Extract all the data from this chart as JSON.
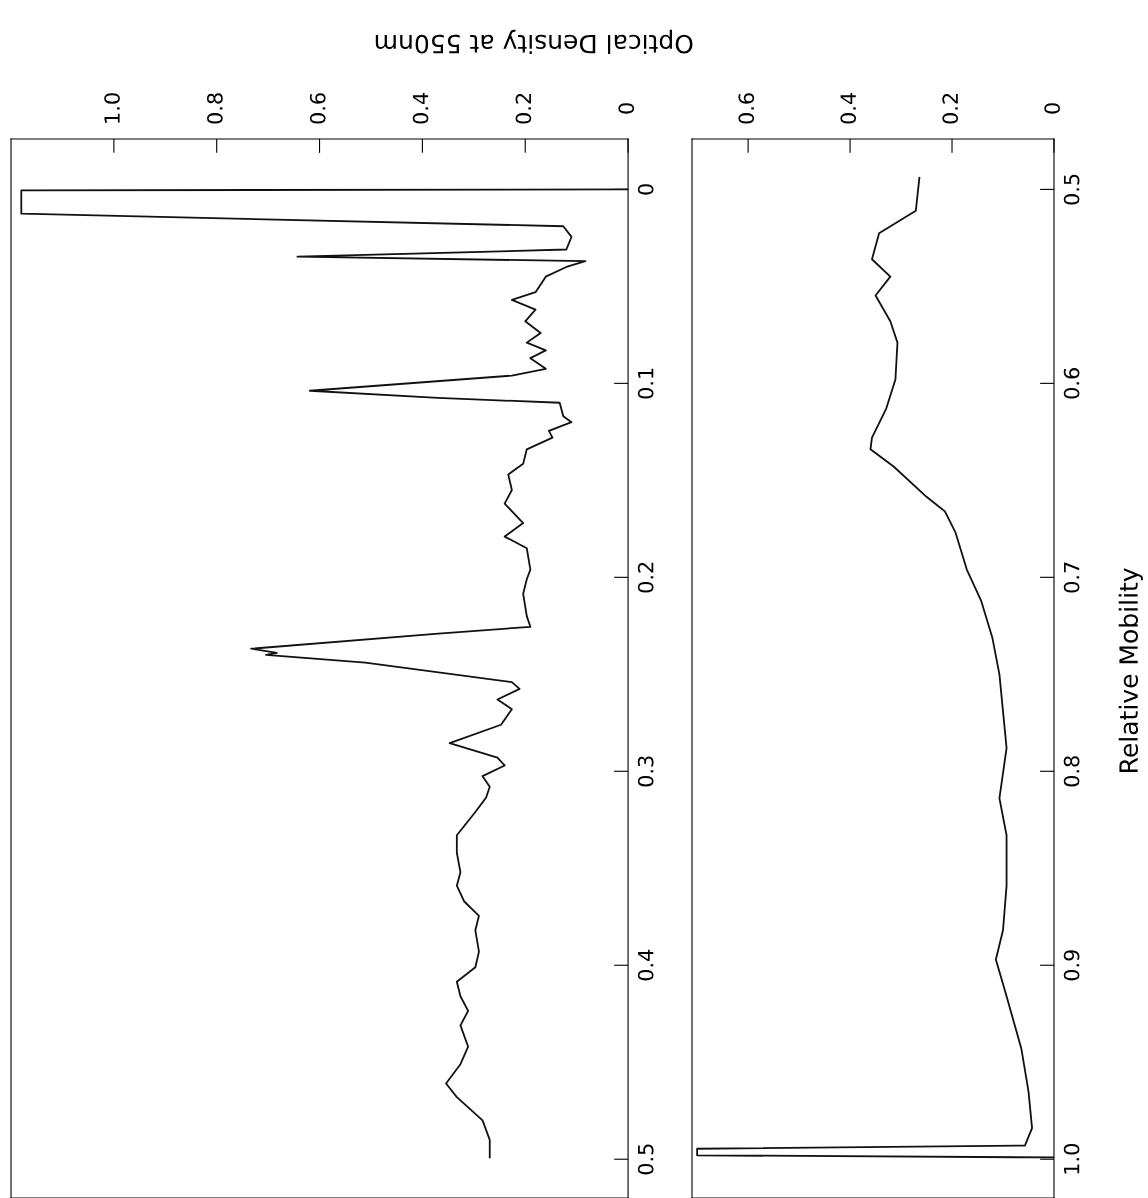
{
  "chart_data": [
    {
      "type": "line",
      "orientation": "horizontal",
      "xlabel": "Optical Density at 550nm",
      "x": [
        0.0,
        0.0005,
        0.0125,
        0.019,
        0.0245,
        0.031,
        0.0347,
        0.037,
        0.04,
        0.045,
        0.053,
        0.057,
        0.062,
        0.068,
        0.074,
        0.079,
        0.083,
        0.087,
        0.0925,
        0.096,
        0.1038,
        0.1075,
        0.11,
        0.117,
        0.12,
        0.1245,
        0.128,
        0.134,
        0.1415,
        0.147,
        0.155,
        0.162,
        0.172,
        0.179,
        0.185,
        0.196,
        0.201,
        0.2085,
        0.22,
        0.2255,
        0.229,
        0.2368,
        0.239,
        0.24,
        0.244,
        0.254,
        0.2575,
        0.263,
        0.268,
        0.276,
        0.2855,
        0.293,
        0.297,
        0.3025,
        0.308,
        0.3135,
        0.321,
        0.333,
        0.342,
        0.352,
        0.359,
        0.367,
        0.3745,
        0.382,
        0.393,
        0.401,
        0.4085,
        0.416,
        0.4235,
        0.431,
        0.442,
        0.451,
        0.461,
        0.468,
        0.48,
        0.49,
        0.499
      ],
      "series": [
        {
          "color": "#111111",
          "values": [
            0.0,
            1.18,
            1.18,
            0.126,
            0.11,
            0.12,
            0.643,
            0.083,
            0.12,
            0.16,
            0.18,
            0.226,
            0.18,
            0.2,
            0.17,
            0.197,
            0.16,
            0.19,
            0.16,
            0.226,
            0.619,
            0.37,
            0.133,
            0.126,
            0.11,
            0.154,
            0.147,
            0.197,
            0.204,
            0.233,
            0.226,
            0.24,
            0.204,
            0.24,
            0.197,
            0.19,
            0.197,
            0.204,
            0.197,
            0.19,
            0.369,
            0.733,
            0.683,
            0.704,
            0.511,
            0.226,
            0.211,
            0.254,
            0.226,
            0.247,
            0.347,
            0.254,
            0.24,
            0.283,
            0.269,
            0.276,
            0.297,
            0.333,
            0.333,
            0.326,
            0.333,
            0.319,
            0.29,
            0.297,
            0.29,
            0.297,
            0.333,
            0.326,
            0.311,
            0.326,
            0.311,
            0.326,
            0.354,
            0.333,
            0.283,
            0.269,
            0.269
          ]
        }
      ],
      "xlim": [
        1.2,
        0
      ],
      "xticks": [
        0,
        0.2,
        0.4,
        0.6,
        0.8,
        {
          "value": 1.0,
          "label": "1.0"
        }
      ],
      "ylim": [
        0.52,
        -0.026
      ],
      "yticks": [
        0,
        0.1,
        0.2,
        0.3,
        0.4,
        0.5
      ]
    },
    {
      "type": "line",
      "orientation": "horizontal",
      "ylabel": "Relative Mobility",
      "x": [
        0.494,
        0.511,
        0.5226,
        0.536,
        0.545,
        0.5547,
        0.568,
        0.579,
        0.598,
        0.613,
        0.628,
        0.634,
        0.643,
        0.6585,
        0.666,
        0.677,
        0.696,
        0.712,
        0.731,
        0.75,
        0.769,
        0.788,
        0.814,
        0.833,
        0.859,
        0.882,
        0.897,
        0.916,
        0.943,
        0.965,
        0.984,
        0.993,
        0.9946,
        0.998,
        0.9991
      ],
      "series": [
        {
          "color": "#111111",
          "values": [
            0.264,
            0.271,
            0.343,
            0.357,
            0.321,
            0.35,
            0.321,
            0.307,
            0.311,
            0.329,
            0.357,
            0.36,
            0.314,
            0.25,
            0.214,
            0.193,
            0.171,
            0.143,
            0.121,
            0.107,
            0.1,
            0.093,
            0.107,
            0.093,
            0.093,
            0.1,
            0.114,
            0.093,
            0.064,
            0.05,
            0.043,
            0.057,
            0.7,
            0.7,
            0.0
          ]
        }
      ],
      "xlim": [
        0.71,
        0
      ],
      "xticks": [
        0,
        0.2,
        0.4,
        0.6
      ],
      "ylim": [
        1.02,
        0.474
      ],
      "yticks": [
        {
          "value": 0.5,
          "label": "0.5"
        },
        0.6,
        0.7,
        0.8,
        0.9,
        {
          "value": 1.0,
          "label": "1.0"
        }
      ]
    }
  ]
}
